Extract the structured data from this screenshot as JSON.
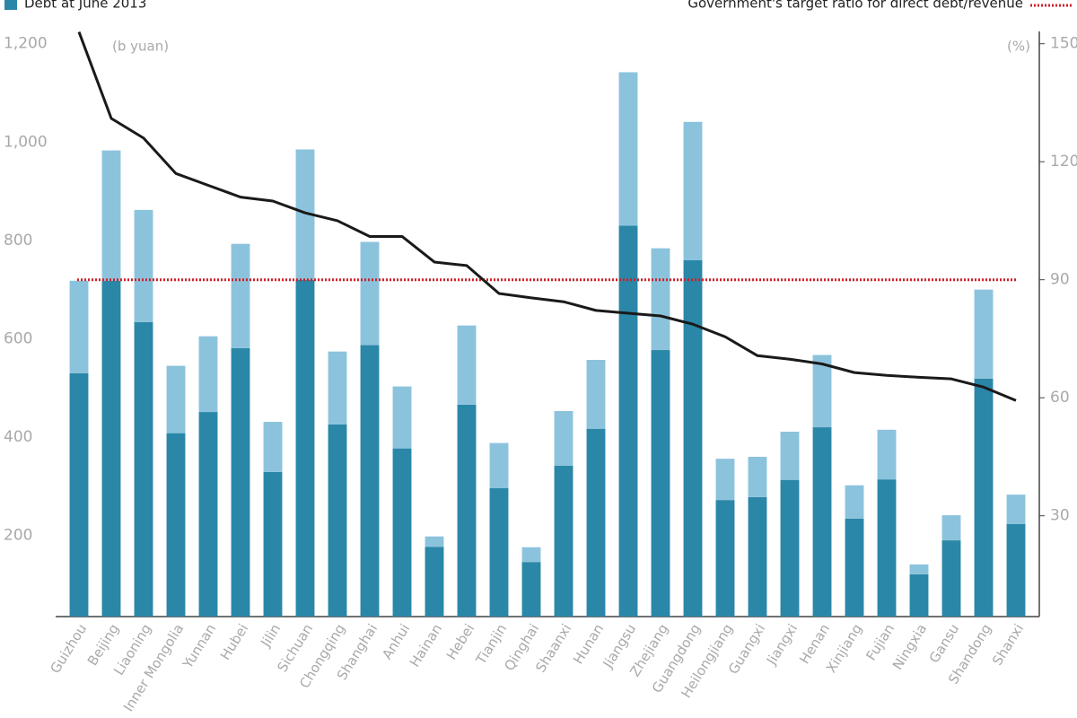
{
  "chart_data": {
    "type": "bar",
    "stacked": true,
    "y_unit": "(b yuan)",
    "y2_unit": "(%)",
    "categories": [
      "Guizhou",
      "Beijing",
      "Liaoning",
      "Inner Mongolia",
      "Yunnan",
      "Hubei",
      "Jilin",
      "Sichuan",
      "Chongqing",
      "Shanghai",
      "Anhui",
      "Hainan",
      "Hebei",
      "Tianjin",
      "Qinghai",
      "Shaanxi",
      "Hunan",
      "Jiangsu",
      "Zhejiang",
      "Guangdong",
      "Heilongjiang",
      "Guangxi",
      "Jiangxi",
      "Henan",
      "Xinjiang",
      "Fujian",
      "Ningxia",
      "Gansu",
      "Shandong",
      "Shanxi"
    ],
    "series": [
      {
        "name": "Debt at June 2013",
        "type": "bar",
        "color": "#2a87a8",
        "values": [
          495,
          683,
          599,
          373,
          416,
          546,
          294,
          685,
          391,
          552,
          342,
          142,
          431,
          261,
          111,
          307,
          382,
          795,
          542,
          725,
          237,
          243,
          278,
          385,
          199,
          279,
          86,
          155,
          484,
          188
        ]
      },
      {
        "type": "bar",
        "color": "#8cc3dc",
        "values": [
          188,
          265,
          228,
          137,
          154,
          212,
          102,
          265,
          148,
          210,
          126,
          21,
          161,
          92,
          30,
          111,
          140,
          312,
          207,
          281,
          84,
          82,
          98,
          147,
          68,
          101,
          20,
          51,
          181,
          60
        ]
      },
      {
        "type": "line",
        "axis": "y2",
        "color": "#1a1a1a",
        "values": [
          153,
          131,
          126,
          117,
          114,
          111,
          110,
          107,
          105,
          101,
          101,
          94.5,
          93.6,
          86.5,
          85.4,
          84.4,
          82.2,
          81.5,
          80.8,
          78.7,
          75.5,
          70.7,
          69.8,
          68.6,
          66.4,
          65.7,
          65.2,
          64.8,
          62.7,
          59.3
        ]
      }
    ],
    "target": {
      "label": "Government's target ratio for direct debt/revenue",
      "value": 90,
      "axis": "y2",
      "color": "#d0202a"
    },
    "ylim": [
      35,
      1225
    ],
    "yticks": [
      200,
      400,
      600,
      800,
      {
        "value": 1000,
        "label": "1,000"
      },
      {
        "value": 1200,
        "label": "1,200"
      }
    ],
    "y2lim": [
      4.375,
      153.125
    ],
    "y2ticks": [
      30,
      60,
      90,
      120,
      150
    ],
    "grid": false
  }
}
